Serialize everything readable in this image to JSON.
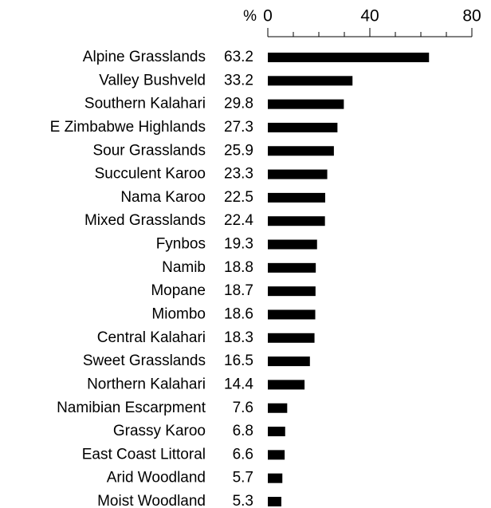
{
  "chart_data": {
    "type": "bar",
    "orientation": "horizontal",
    "x_label": "%",
    "categories": [
      "Alpine Grasslands",
      "Valley Bushveld",
      "Southern Kalahari",
      "E Zimbabwe Highlands",
      "Sour Grasslands",
      "Succulent Karoo",
      "Nama Karoo",
      "Mixed Grasslands",
      "Fynbos",
      "Namib",
      "Mopane",
      "Miombo",
      "Central Kalahari",
      "Sweet Grasslands",
      "Northern Kalahari",
      "Namibian Escarpment",
      "Grassy Karoo",
      "East Coast Littoral",
      "Arid Woodland",
      "Moist Woodland"
    ],
    "values": [
      63.2,
      33.2,
      29.8,
      27.3,
      25.9,
      23.3,
      22.5,
      22.4,
      19.3,
      18.8,
      18.7,
      18.6,
      18.3,
      16.5,
      14.4,
      7.6,
      6.8,
      6.6,
      5.7,
      5.3
    ],
    "color": "#000000",
    "xlim": [
      0,
      80
    ],
    "xticks": [
      0,
      40,
      80
    ],
    "xminor_ticks": [
      10,
      20,
      30,
      50,
      60,
      70
    ]
  }
}
